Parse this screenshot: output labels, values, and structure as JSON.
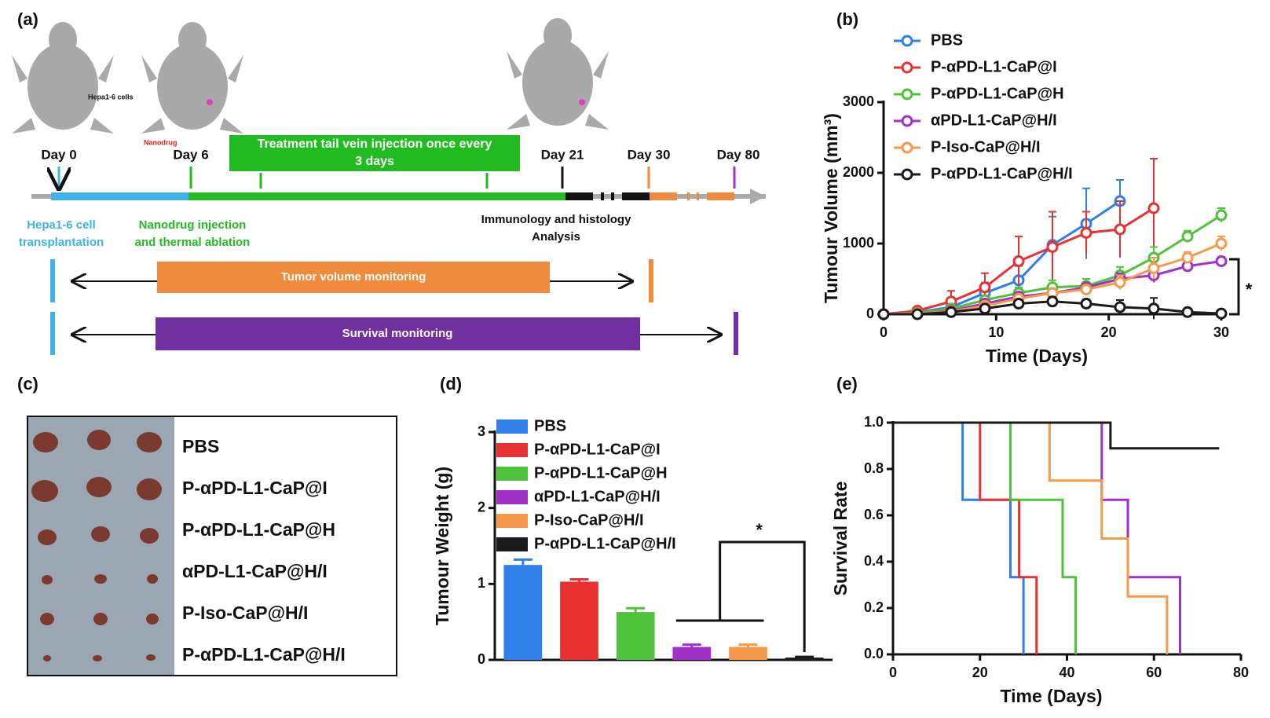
{
  "schematic": {
    "panel_label": "(a)",
    "cells_label": "Hepa1-6 cells",
    "drug_label": "Nanodrug",
    "days": [
      "Day 0",
      "Day 6",
      "Day 21",
      "Day 30",
      "Day 80"
    ],
    "treatment": [
      "Treatment tail vein injection once every",
      "3 days"
    ],
    "transplant": [
      "Hepa1-6 cell",
      "transplantation"
    ],
    "injection": [
      "Nanodrug injection",
      "and thermal ablation"
    ],
    "analysis": [
      "Immunology and histology",
      "Analysis"
    ],
    "tumor_monitoring": "Tumor volume monitoring",
    "survival_monitoring": "Survival monitoring"
  },
  "photo": {
    "panel_label": "(c)",
    "labels": [
      "PBS",
      "P-αPD-L1-CaP@I",
      "P-αPD-L1-CaP@H",
      "αPD-L1-CaP@H/I",
      "P-Iso-CaP@H/I",
      "P-αPD-L1-CaP@H/I"
    ]
  },
  "chart_data": [
    {
      "type": "line",
      "panel_label": "(b)",
      "x": [
        0,
        3,
        6,
        9,
        12,
        15,
        18,
        21,
        24,
        27,
        30
      ],
      "xlim": [
        0,
        30
      ],
      "xticks": [
        0,
        10,
        20,
        30
      ],
      "ylim": [
        0,
        3000
      ],
      "yticks": [
        0,
        1000,
        2000,
        3000
      ],
      "xlabel": "Time (Days)",
      "ylabel": "Tumour Volume (mm³)",
      "annotation": "*",
      "series": [
        {
          "name": "PBS",
          "color": "#2f7fe8",
          "values": [
            0,
            30,
            100,
            300,
            480,
            980,
            1280,
            1600,
            null,
            null,
            null
          ],
          "errors": [
            0,
            20,
            60,
            150,
            200,
            400,
            500,
            300,
            null,
            null,
            null
          ]
        },
        {
          "name": "P-αPD-L1-CaP@I",
          "color": "#e83232",
          "values": [
            0,
            50,
            180,
            380,
            750,
            950,
            1150,
            1200,
            1500,
            null,
            null
          ],
          "errors": [
            0,
            30,
            150,
            200,
            350,
            500,
            300,
            400,
            700,
            null,
            null
          ]
        },
        {
          "name": "P-αPD-L1-CaP@H",
          "color": "#4ec23a",
          "values": [
            0,
            20,
            80,
            200,
            300,
            380,
            400,
            550,
            800,
            1100,
            1400
          ],
          "errors": [
            0,
            10,
            30,
            50,
            80,
            100,
            100,
            120,
            150,
            80,
            100
          ]
        },
        {
          "name": "αPD-L1-CaP@H/I",
          "color": "#a030c8",
          "values": [
            0,
            10,
            50,
            150,
            250,
            300,
            380,
            500,
            550,
            680,
            750
          ],
          "errors": [
            0,
            10,
            20,
            40,
            50,
            60,
            50,
            80,
            100,
            60,
            60
          ]
        },
        {
          "name": "P-Iso-CaP@H/I",
          "color": "#f5994a",
          "values": [
            0,
            10,
            40,
            120,
            220,
            300,
            350,
            450,
            650,
            800,
            1000
          ],
          "errors": [
            0,
            10,
            20,
            40,
            50,
            60,
            60,
            100,
            150,
            80,
            100
          ]
        },
        {
          "name": "P-αPD-L1-CaP@H/I",
          "color": "#1a1a1a",
          "values": [
            0,
            0,
            30,
            80,
            150,
            180,
            150,
            100,
            80,
            30,
            10
          ],
          "errors": [
            0,
            10,
            20,
            40,
            50,
            60,
            60,
            100,
            150,
            30,
            10
          ]
        }
      ]
    },
    {
      "type": "bar",
      "panel_label": "(d)",
      "categories": [
        "PBS",
        "P-αPD-L1-CaP@I",
        "P-αPD-L1-CaP@H",
        "αPD-L1-CaP@H/I",
        "P-Iso-CaP@H/I",
        "P-αPD-L1-CaP@H/I"
      ],
      "colors": [
        "#2f7fe8",
        "#e83232",
        "#4ec23a",
        "#a030c8",
        "#f5994a",
        "#1a1a1a"
      ],
      "values": [
        1.25,
        1.03,
        0.63,
        0.17,
        0.17,
        0.03
      ],
      "errors": [
        0.07,
        0.03,
        0.05,
        0.03,
        0.03,
        0.01
      ],
      "ylim": [
        0,
        3
      ],
      "yticks": [
        0,
        1,
        2,
        3
      ],
      "ylabel": "Tumour Weight (g)",
      "annotation": "*"
    },
    {
      "type": "step",
      "panel_label": "(e)",
      "xlim": [
        0,
        80
      ],
      "xticks": [
        0,
        20,
        40,
        60,
        80
      ],
      "ylim": [
        0,
        1
      ],
      "yticks": [
        {
          "value": 0,
          "label": "0.0"
        },
        {
          "value": 0.2,
          "label": "0.2"
        },
        {
          "value": 0.4,
          "label": "0.4"
        },
        {
          "value": 0.6,
          "label": "0.6"
        },
        {
          "value": 0.8,
          "label": "0.8"
        },
        {
          "value": 1,
          "label": "1.0"
        }
      ],
      "xlabel": "Time (Days)",
      "ylabel": "Survival Rate",
      "series": [
        {
          "color": "#2f7fe8",
          "x": [
            0,
            16,
            27,
            30
          ],
          "values": [
            1,
            0.667,
            0.333,
            0
          ]
        },
        {
          "color": "#e83232",
          "x": [
            0,
            20,
            29,
            33
          ],
          "values": [
            1,
            0.667,
            0.333,
            0
          ]
        },
        {
          "color": "#4ec23a",
          "x": [
            0,
            27,
            39,
            42
          ],
          "values": [
            1,
            0.667,
            0.333,
            0
          ]
        },
        {
          "color": "#a030c8",
          "x": [
            0,
            48,
            54,
            66
          ],
          "values": [
            1,
            0.667,
            0.333,
            0
          ]
        },
        {
          "color": "#f5994a",
          "x": [
            0,
            36,
            48,
            54,
            63
          ],
          "values": [
            1,
            0.75,
            0.5,
            0.25,
            0
          ]
        },
        {
          "color": "#1a1a1a",
          "x": [
            0,
            50,
            75
          ],
          "values": [
            1,
            0.889,
            0.889
          ]
        }
      ]
    }
  ]
}
